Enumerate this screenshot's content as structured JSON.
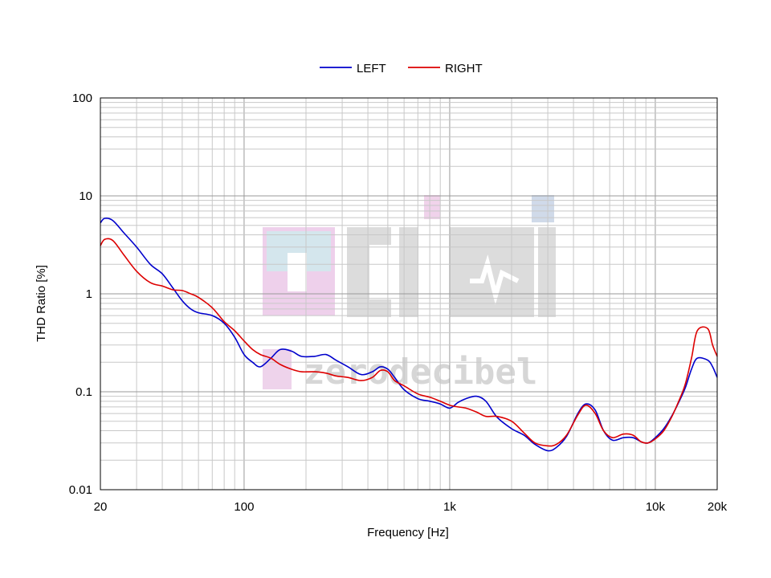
{
  "chart_data": {
    "type": "line",
    "title": "",
    "xlabel": "Frequency [Hz]",
    "ylabel": "THD Ratio [%]",
    "x_scale": "log",
    "y_scale": "log",
    "xlim": [
      20,
      20000
    ],
    "ylim": [
      0.01,
      100
    ],
    "grid": true,
    "legend_position": "top-center",
    "x_ticks": [
      {
        "value": 20,
        "label": "20"
      },
      {
        "value": 100,
        "label": "100"
      },
      {
        "value": 1000,
        "label": "1k"
      },
      {
        "value": 10000,
        "label": "10k"
      },
      {
        "value": 20000,
        "label": "20k"
      }
    ],
    "y_ticks": [
      {
        "value": 100,
        "label": "100"
      },
      {
        "value": 10,
        "label": "10"
      },
      {
        "value": 1,
        "label": "1"
      },
      {
        "value": 0.1,
        "label": "0.1"
      },
      {
        "value": 0.01,
        "label": "0.01"
      }
    ],
    "series": [
      {
        "name": "LEFT",
        "color": "#0000cc",
        "x": [
          20,
          21,
          23,
          26,
          30,
          35,
          40,
          45,
          50,
          55,
          60,
          70,
          80,
          90,
          100,
          110,
          120,
          135,
          150,
          170,
          190,
          220,
          250,
          280,
          320,
          370,
          420,
          460,
          500,
          540,
          600,
          700,
          800,
          900,
          1000,
          1100,
          1200,
          1350,
          1500,
          1700,
          2000,
          2300,
          2600,
          3000,
          3300,
          3700,
          4200,
          4600,
          5100,
          5600,
          6200,
          7000,
          7800,
          8500,
          9200,
          10000,
          11000,
          12000,
          13000,
          14000,
          15000,
          16000,
          18000,
          19000,
          20000
        ],
        "y": [
          5.3,
          5.9,
          5.6,
          4.2,
          3.0,
          2.0,
          1.6,
          1.15,
          0.85,
          0.7,
          0.64,
          0.6,
          0.5,
          0.36,
          0.24,
          0.2,
          0.18,
          0.22,
          0.27,
          0.26,
          0.23,
          0.23,
          0.24,
          0.21,
          0.18,
          0.15,
          0.16,
          0.18,
          0.17,
          0.14,
          0.105,
          0.085,
          0.08,
          0.075,
          0.068,
          0.078,
          0.085,
          0.09,
          0.08,
          0.055,
          0.042,
          0.036,
          0.029,
          0.025,
          0.027,
          0.035,
          0.06,
          0.075,
          0.065,
          0.04,
          0.032,
          0.034,
          0.034,
          0.031,
          0.03,
          0.034,
          0.042,
          0.056,
          0.078,
          0.11,
          0.17,
          0.22,
          0.21,
          0.18,
          0.14
        ]
      },
      {
        "name": "RIGHT",
        "color": "#dd0000",
        "x": [
          20,
          21,
          23,
          26,
          30,
          35,
          40,
          45,
          50,
          55,
          60,
          70,
          80,
          90,
          100,
          110,
          120,
          135,
          150,
          170,
          190,
          220,
          250,
          280,
          320,
          370,
          420,
          460,
          500,
          540,
          600,
          700,
          800,
          900,
          1000,
          1100,
          1200,
          1350,
          1500,
          1700,
          2000,
          2300,
          2600,
          3000,
          3300,
          3700,
          4200,
          4600,
          5100,
          5600,
          6200,
          7000,
          7800,
          8500,
          9200,
          10000,
          11000,
          12000,
          13000,
          14000,
          15000,
          16000,
          18000,
          19000,
          20000
        ],
        "y": [
          3.1,
          3.6,
          3.5,
          2.5,
          1.7,
          1.3,
          1.2,
          1.1,
          1.08,
          1.0,
          0.92,
          0.72,
          0.52,
          0.42,
          0.33,
          0.27,
          0.24,
          0.22,
          0.19,
          0.17,
          0.16,
          0.16,
          0.155,
          0.145,
          0.14,
          0.13,
          0.14,
          0.165,
          0.16,
          0.13,
          0.115,
          0.095,
          0.088,
          0.08,
          0.073,
          0.07,
          0.068,
          0.062,
          0.056,
          0.056,
          0.05,
          0.038,
          0.03,
          0.028,
          0.029,
          0.036,
          0.058,
          0.073,
          0.06,
          0.04,
          0.034,
          0.037,
          0.036,
          0.031,
          0.03,
          0.033,
          0.04,
          0.055,
          0.08,
          0.12,
          0.22,
          0.42,
          0.44,
          0.3,
          0.23
        ]
      }
    ]
  },
  "watermark": {
    "logo_text": "zerodecibel",
    "colors": [
      "#d5d5d5",
      "#f5c8e0",
      "#c8e8ea",
      "#e8d0f0"
    ]
  }
}
